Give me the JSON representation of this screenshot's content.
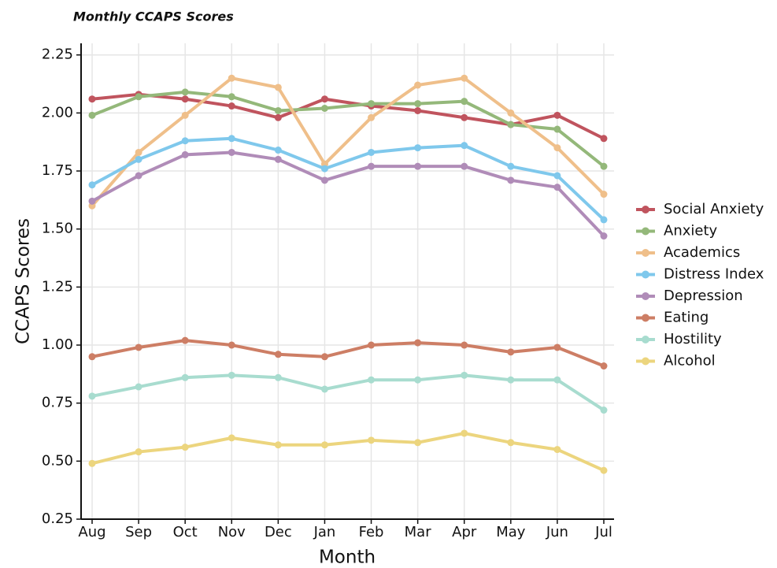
{
  "chart_data": {
    "type": "line",
    "title": "Monthly CCAPS Scores",
    "x_label": "Month",
    "y_label": "CCAPS Scores",
    "categories": [
      "Aug",
      "Sep",
      "Oct",
      "Nov",
      "Dec",
      "Jan",
      "Feb",
      "Mar",
      "Apr",
      "May",
      "Jun",
      "Jul"
    ],
    "ylim": [
      0.25,
      2.3
    ],
    "yticks": [
      0.25,
      {
        "value": 0.5,
        "label": "0.50"
      },
      0.75,
      {
        "value": 1,
        "label": "1.00"
      },
      1.25,
      {
        "value": 1.5,
        "label": "1.50"
      },
      1.75,
      {
        "value": 2,
        "label": "2.00"
      },
      2.25
    ],
    "grid": true,
    "legend": "right",
    "series": [
      {
        "name": "Social Anxiety",
        "color": "#c0545e",
        "values": [
          2.06,
          2.08,
          2.06,
          2.03,
          1.98,
          2.06,
          2.03,
          2.01,
          1.98,
          1.95,
          1.99,
          1.89
        ]
      },
      {
        "name": "Anxiety",
        "color": "#94b87a",
        "values": [
          1.99,
          2.07,
          2.09,
          2.07,
          2.01,
          2.02,
          2.04,
          2.04,
          2.05,
          1.95,
          1.93,
          1.77
        ]
      },
      {
        "name": "Academics",
        "color": "#efbf8a",
        "values": [
          1.6,
          1.83,
          1.99,
          2.15,
          2.11,
          1.78,
          1.98,
          2.12,
          2.15,
          2.0,
          1.85,
          1.65
        ]
      },
      {
        "name": "Distress Index",
        "color": "#7fc8ec",
        "values": [
          1.69,
          1.8,
          1.88,
          1.89,
          1.84,
          1.76,
          1.83,
          1.85,
          1.86,
          1.77,
          1.73,
          1.54
        ]
      },
      {
        "name": "Depression",
        "color": "#b08cb8",
        "values": [
          1.62,
          1.73,
          1.82,
          1.83,
          1.8,
          1.71,
          1.77,
          1.77,
          1.77,
          1.71,
          1.68,
          1.47
        ]
      },
      {
        "name": "Eating",
        "color": "#cd7e65",
        "values": [
          0.95,
          0.99,
          1.02,
          1.0,
          0.96,
          0.95,
          1.0,
          1.01,
          1.0,
          0.97,
          0.99,
          0.91
        ]
      },
      {
        "name": "Hostility",
        "color": "#a8dccf",
        "values": [
          0.78,
          0.82,
          0.86,
          0.87,
          0.86,
          0.81,
          0.85,
          0.85,
          0.87,
          0.85,
          0.85,
          0.72
        ]
      },
      {
        "name": "Alcohol",
        "color": "#ecd57e",
        "values": [
          0.49,
          0.54,
          0.56,
          0.6,
          0.57,
          0.57,
          0.59,
          0.58,
          0.62,
          0.58,
          0.55,
          0.46
        ]
      }
    ]
  }
}
